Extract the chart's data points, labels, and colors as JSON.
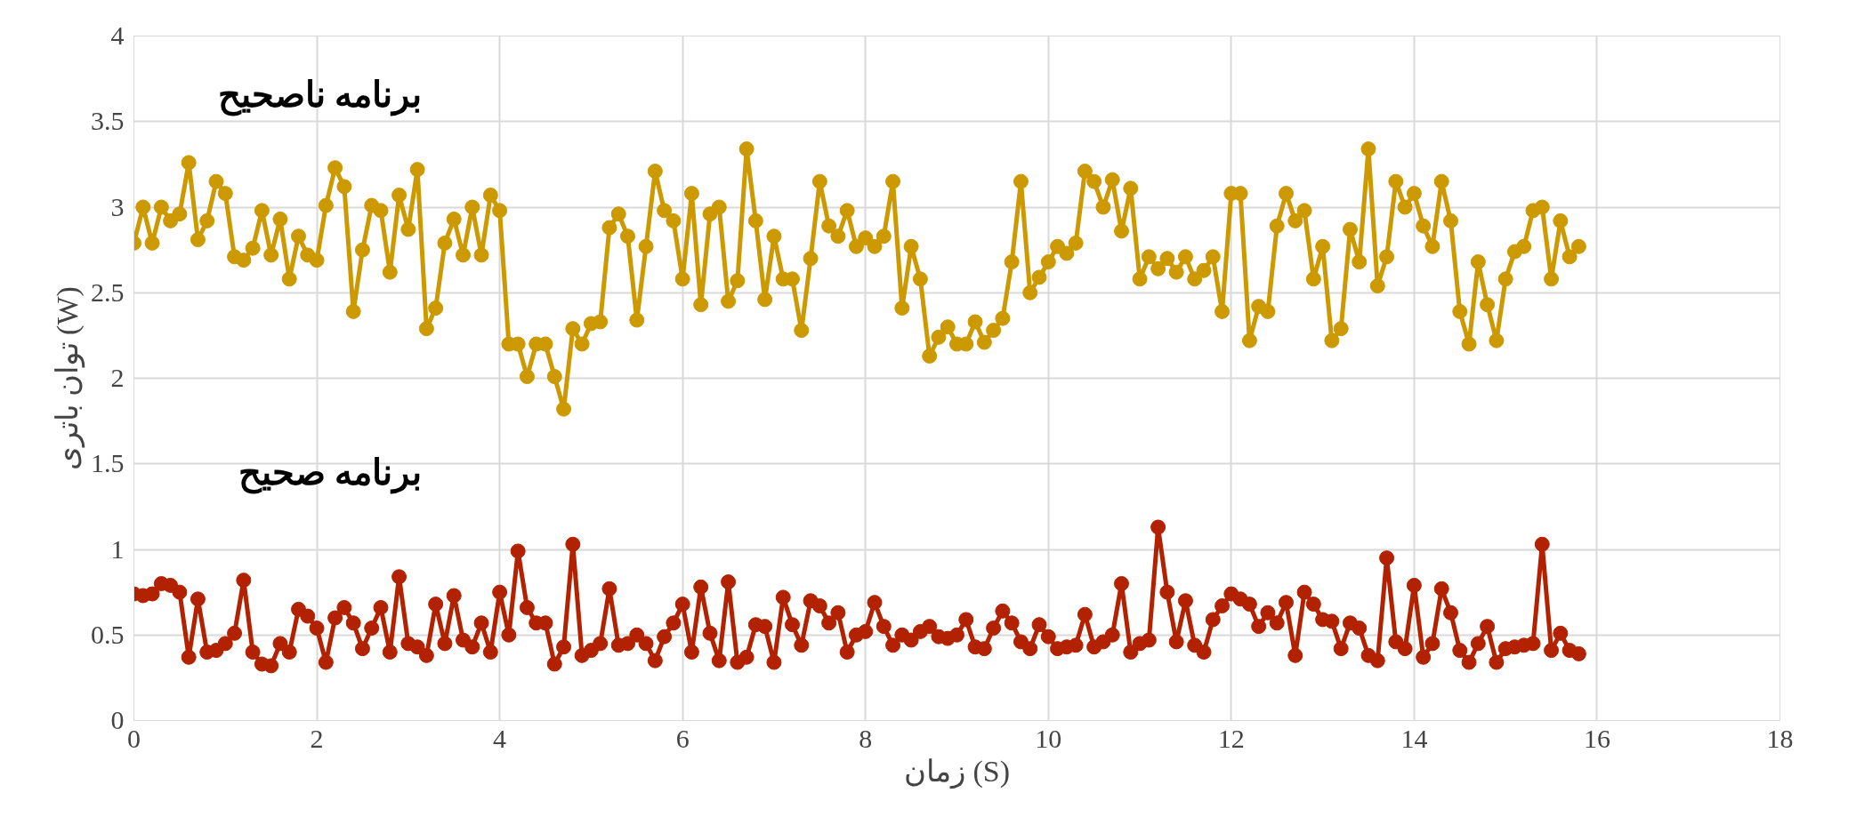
{
  "chart_data": {
    "type": "line",
    "xlabel": "زمان (S)",
    "ylabel": "توان باتری (W)",
    "x": [
      0,
      0.1,
      0.2,
      0.3,
      0.4,
      0.5,
      0.6,
      0.7,
      0.8,
      0.9,
      1,
      1.1,
      1.2,
      1.3,
      1.4,
      1.5,
      1.6,
      1.7,
      1.8,
      1.9,
      2,
      2.1,
      2.2,
      2.3,
      2.4,
      2.5,
      2.6,
      2.7,
      2.8,
      2.9,
      3,
      3.1,
      3.2,
      3.3,
      3.4,
      3.5,
      3.6,
      3.7,
      3.8,
      3.9,
      4,
      4.1,
      4.2,
      4.3,
      4.4,
      4.5,
      4.6,
      4.7,
      4.8,
      4.9,
      5,
      5.1,
      5.2,
      5.3,
      5.4,
      5.5,
      5.6,
      5.7,
      5.8,
      5.9,
      6,
      6.1,
      6.2,
      6.3,
      6.4,
      6.5,
      6.6,
      6.7,
      6.8,
      6.9,
      7,
      7.1,
      7.2,
      7.3,
      7.4,
      7.5,
      7.6,
      7.7,
      7.8,
      7.9,
      8,
      8.1,
      8.2,
      8.3,
      8.4,
      8.5,
      8.6,
      8.7,
      8.8,
      8.9,
      9,
      9.1,
      9.2,
      9.3,
      9.4,
      9.5,
      9.6,
      9.7,
      9.8,
      9.9,
      10,
      10.1,
      10.2,
      10.3,
      10.4,
      10.5,
      10.6,
      10.7,
      10.8,
      10.9,
      11,
      11.1,
      11.2,
      11.3,
      11.4,
      11.5,
      11.6,
      11.7,
      11.8,
      11.9,
      12,
      12.1,
      12.2,
      12.3,
      12.4,
      12.5,
      12.6,
      12.7,
      12.8,
      12.9,
      13,
      13.1,
      13.2,
      13.3,
      13.4,
      13.5,
      13.6,
      13.7,
      13.8,
      13.9,
      14,
      14.1,
      14.2,
      14.3,
      14.4,
      14.5,
      14.6,
      14.7,
      14.8,
      14.9,
      15,
      15.1,
      15.2,
      15.3,
      15.4,
      15.5,
      15.6,
      15.7,
      15.8
    ],
    "series": [
      {
        "name": "برنامه ناصحیح",
        "color": "#cc9900",
        "values": [
          2.79,
          3.0,
          2.79,
          3.0,
          2.92,
          2.96,
          3.26,
          2.81,
          2.92,
          3.15,
          3.08,
          2.71,
          2.69,
          2.76,
          2.98,
          2.72,
          2.93,
          2.58,
          2.83,
          2.72,
          2.69,
          3.01,
          3.23,
          3.12,
          2.39,
          2.75,
          3.01,
          2.98,
          2.62,
          3.07,
          2.87,
          3.22,
          2.29,
          2.41,
          2.79,
          2.93,
          2.72,
          3.0,
          2.72,
          3.07,
          2.98,
          2.2,
          2.2,
          2.01,
          2.2,
          2.2,
          2.01,
          1.82,
          2.29,
          2.2,
          2.32,
          2.33,
          2.88,
          2.96,
          2.83,
          2.34,
          2.77,
          3.21,
          2.98,
          2.92,
          2.58,
          3.08,
          2.43,
          2.96,
          3.0,
          2.45,
          2.57,
          3.34,
          2.92,
          2.46,
          2.83,
          2.58,
          2.58,
          2.28,
          2.7,
          3.15,
          2.89,
          2.83,
          2.98,
          2.77,
          2.82,
          2.77,
          2.83,
          3.15,
          2.41,
          2.77,
          2.58,
          2.13,
          2.24,
          2.3,
          2.2,
          2.2,
          2.33,
          2.21,
          2.28,
          2.35,
          2.68,
          3.15,
          2.5,
          2.59,
          2.68,
          2.77,
          2.73,
          2.79,
          3.21,
          3.15,
          3.0,
          3.16,
          2.86,
          3.11,
          2.58,
          2.71,
          2.64,
          2.7,
          2.62,
          2.71,
          2.58,
          2.63,
          2.71,
          2.39,
          3.08,
          3.08,
          2.22,
          2.42,
          2.39,
          2.89,
          3.08,
          2.92,
          2.98,
          2.58,
          2.77,
          2.22,
          2.29,
          2.87,
          2.68,
          3.34,
          2.54,
          2.71,
          3.15,
          3.0,
          3.08,
          2.89,
          2.77,
          3.15,
          2.92,
          2.39,
          2.2,
          2.68,
          2.43,
          2.22,
          2.58,
          2.74,
          2.77,
          2.98,
          3.0,
          2.58,
          2.92,
          2.71,
          2.77
        ]
      },
      {
        "name": "برنامه صحیح",
        "color": "#b22200",
        "values": [
          0.74,
          0.73,
          0.74,
          0.8,
          0.79,
          0.75,
          0.37,
          0.71,
          0.4,
          0.41,
          0.45,
          0.51,
          0.82,
          0.4,
          0.33,
          0.32,
          0.45,
          0.4,
          0.65,
          0.61,
          0.54,
          0.34,
          0.6,
          0.66,
          0.57,
          0.42,
          0.54,
          0.66,
          0.4,
          0.84,
          0.45,
          0.43,
          0.38,
          0.68,
          0.45,
          0.73,
          0.47,
          0.43,
          0.57,
          0.4,
          0.75,
          0.5,
          0.99,
          0.66,
          0.57,
          0.57,
          0.33,
          0.43,
          1.03,
          0.38,
          0.41,
          0.45,
          0.77,
          0.44,
          0.45,
          0.5,
          0.45,
          0.35,
          0.49,
          0.57,
          0.68,
          0.4,
          0.78,
          0.51,
          0.35,
          0.81,
          0.34,
          0.37,
          0.56,
          0.55,
          0.34,
          0.72,
          0.56,
          0.44,
          0.7,
          0.67,
          0.57,
          0.63,
          0.4,
          0.5,
          0.52,
          0.69,
          0.55,
          0.44,
          0.5,
          0.47,
          0.52,
          0.55,
          0.49,
          0.48,
          0.5,
          0.59,
          0.43,
          0.42,
          0.54,
          0.64,
          0.57,
          0.46,
          0.42,
          0.56,
          0.49,
          0.42,
          0.43,
          0.44,
          0.62,
          0.43,
          0.46,
          0.5,
          0.8,
          0.4,
          0.45,
          0.47,
          1.13,
          0.75,
          0.46,
          0.7,
          0.44,
          0.4,
          0.59,
          0.67,
          0.74,
          0.71,
          0.68,
          0.55,
          0.63,
          0.57,
          0.69,
          0.38,
          0.75,
          0.68,
          0.59,
          0.58,
          0.42,
          0.57,
          0.54,
          0.38,
          0.35,
          0.95,
          0.46,
          0.42,
          0.79,
          0.37,
          0.45,
          0.77,
          0.63,
          0.41,
          0.34,
          0.45,
          0.55,
          0.34,
          0.42,
          0.43,
          0.44,
          0.45,
          1.03,
          0.41,
          0.51,
          0.41,
          0.39
        ]
      }
    ],
    "xlim": [
      0,
      18
    ],
    "xticks": [
      0,
      2,
      4,
      6,
      8,
      10,
      12,
      14,
      16,
      18
    ],
    "ylim": [
      0,
      4
    ],
    "yticks": [
      0,
      0.5,
      1,
      1.5,
      2,
      2.5,
      3,
      3.5,
      4
    ],
    "grid": true,
    "marker": "circle",
    "line_style": "solid"
  }
}
